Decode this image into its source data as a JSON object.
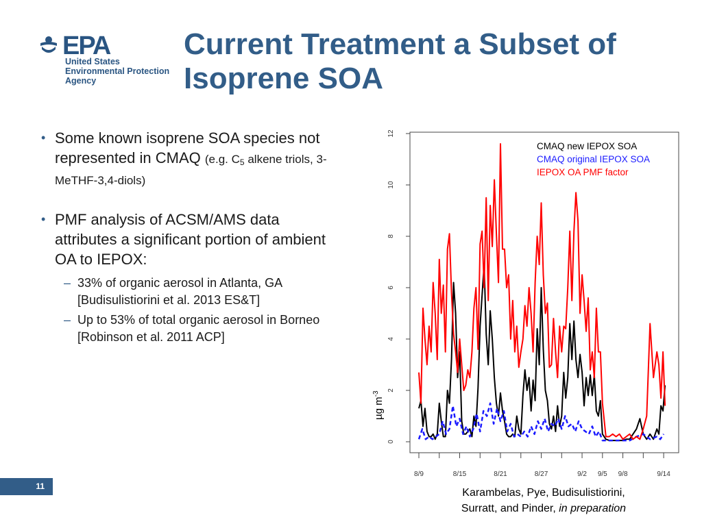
{
  "logo": {
    "wordmark": "EPA",
    "agency_lines": [
      "United States",
      "Environmental Protection",
      "Agency"
    ]
  },
  "title": "Current Treatment a Subset of Isoprene SOA",
  "bullets": [
    {
      "text": "Some known isoprene SOA species not represented in CMAQ",
      "note_prefix": "(e.g. C",
      "note_sub": "5",
      "note_suffix": " alkene triols, 3-MeTHF-3,4-diols)"
    },
    {
      "text": "PMF analysis of ACSM/AMS data attributes a significant portion of ambient OA to IEPOX:",
      "sub_items": [
        "33% of organic aerosol in Atlanta, GA [Budisulistiorini et al. 2013 ES&T]",
        "Up to 53% of total organic aerosol in Borneo [Robinson et al. 2011 ACP]"
      ]
    }
  ],
  "citation": {
    "line1": "Karambelas, Pye, Budisulistiorini,",
    "line2_prefix": "Surratt, and Pinder, ",
    "line2_italic": "in preparation"
  },
  "page_number": "11",
  "colors": {
    "epa_blue": "#325d88",
    "series_black": "#000000",
    "series_blue": "#1a1aff",
    "series_red": "#ff0000"
  },
  "chart_data": {
    "type": "line",
    "ylabel_base": "µg m",
    "ylabel_sup": "-3",
    "ylim": [
      0,
      12
    ],
    "yticks": [
      0,
      2,
      4,
      6,
      8,
      10,
      12
    ],
    "xlim": [
      0,
      37
    ],
    "xtick_labels": [
      {
        "x": 0,
        "label": "8/9"
      },
      {
        "x": 6,
        "label": "8/15"
      },
      {
        "x": 12,
        "label": "8/21"
      },
      {
        "x": 18,
        "label": "8/27"
      },
      {
        "x": 24,
        "label": "9/2"
      },
      {
        "x": 27,
        "label": "9/5"
      },
      {
        "x": 30,
        "label": "9/8"
      },
      {
        "x": 36,
        "label": "9/14"
      }
    ],
    "grid": false,
    "legend": "top-right",
    "series": [
      {
        "name": "CMAQ new IEPOX SOA",
        "color": "#000000",
        "dash": false,
        "x": [
          0,
          0.3,
          0.6,
          0.9,
          1.2,
          1.5,
          1.8,
          2.1,
          2.4,
          2.7,
          3,
          3.3,
          3.6,
          3.9,
          4.2,
          4.5,
          4.8,
          5.1,
          5.4,
          5.7,
          6,
          6.3,
          6.6,
          6.9,
          7.2,
          7.5,
          7.8,
          8.1,
          8.4,
          8.7,
          9,
          9.3,
          9.6,
          9.9,
          10.2,
          10.5,
          10.8,
          11.1,
          11.4,
          11.7,
          12,
          12.3,
          12.6,
          12.9,
          13.2,
          13.5,
          13.8,
          14.1,
          14.4,
          14.7,
          15,
          15.3,
          15.6,
          15.9,
          16.2,
          16.5,
          16.8,
          17.1,
          17.4,
          17.7,
          18,
          18.3,
          18.6,
          18.9,
          19.2,
          19.5,
          19.8,
          20.1,
          20.4,
          20.7,
          21,
          21.3,
          21.6,
          21.9,
          22.2,
          22.5,
          22.8,
          23.1,
          23.4,
          23.7,
          24,
          24.3,
          24.6,
          24.9,
          25.2,
          25.5,
          25.8,
          26.1,
          26.4,
          26.7,
          27,
          27.5,
          28,
          28.5,
          29,
          29.5,
          30,
          30.5,
          31,
          31.5,
          32,
          32.5,
          33,
          33.5,
          34,
          34.5,
          35,
          35.3,
          35.6,
          35.9,
          36.2
        ],
        "y": [
          1.3,
          1.6,
          0.6,
          1.3,
          0.4,
          0.2,
          0.2,
          0.3,
          0.1,
          0.3,
          1.5,
          0.8,
          0.2,
          0.2,
          2.0,
          1.5,
          3.2,
          6.2,
          5.0,
          2.5,
          3.5,
          0.8,
          0.3,
          0.3,
          0.4,
          0.5,
          0.2,
          1.0,
          0.6,
          2.1,
          4.5,
          5.7,
          6.9,
          4.2,
          3.0,
          5.1,
          4.0,
          2.5,
          1.5,
          1.0,
          1.9,
          1.2,
          0.8,
          0.3,
          0.2,
          0.2,
          0.3,
          0.2,
          1.0,
          0.5,
          0.3,
          1.8,
          2.8,
          2.0,
          2.5,
          1.2,
          2.4,
          1.6,
          4.4,
          3.0,
          6.0,
          3.6,
          2.0,
          1.6,
          0.7,
          0.5,
          1.0,
          0.4,
          1.4,
          0.6,
          1.0,
          2.7,
          1.7,
          2.5,
          4.6,
          3.2,
          4.7,
          3.2,
          2.5,
          3.4,
          2.7,
          1.4,
          2.5,
          1.8,
          2.6,
          1.8,
          2.6,
          1.2,
          1.0,
          1.6,
          0.3,
          0.1,
          0.05,
          0.05,
          0.05,
          0.05,
          0.05,
          0.1,
          0.1,
          0.3,
          0.5,
          0.9,
          0.3,
          0.1,
          0.3,
          0.1,
          0.5,
          0.3,
          1.4,
          1.2,
          2.2
        ]
      },
      {
        "name": "CMAQ original IEPOX SOA",
        "color": "#1a1aff",
        "dash": true,
        "x": [
          0,
          0.5,
          1,
          1.5,
          2,
          2.5,
          3,
          3.5,
          4,
          4.5,
          5,
          5.5,
          6,
          6.5,
          7,
          7.5,
          8,
          8.5,
          9,
          9.5,
          10,
          10.5,
          11,
          11.5,
          12,
          12.5,
          13,
          13.5,
          14,
          14.5,
          15,
          15.5,
          16,
          16.5,
          17,
          17.5,
          18,
          18.5,
          19,
          19.5,
          20,
          20.5,
          21,
          21.5,
          22,
          22.5,
          23,
          23.5,
          24,
          24.5,
          25,
          25.5,
          26,
          26.5,
          27,
          28,
          29,
          30,
          31,
          32,
          33,
          34,
          35,
          35.5,
          36
        ],
        "y": [
          0.1,
          0.5,
          0.1,
          0.2,
          0.1,
          0.2,
          0.3,
          0.8,
          0.3,
          0.5,
          1.4,
          0.6,
          0.9,
          0.3,
          0.6,
          0.2,
          0.5,
          1.1,
          0.4,
          1.2,
          1.0,
          1.5,
          0.7,
          1.3,
          0.8,
          1.2,
          0.4,
          0.7,
          0.2,
          0.3,
          0.2,
          0.4,
          0.2,
          0.6,
          0.3,
          0.8,
          0.5,
          0.9,
          0.4,
          0.7,
          0.6,
          0.9,
          0.5,
          1.0,
          0.6,
          0.7,
          0.4,
          0.8,
          0.5,
          0.4,
          0.3,
          0.6,
          0.2,
          0.4,
          0.05,
          0.05,
          0.05,
          0.05,
          0.05,
          0.2,
          0.3,
          0.1,
          0.2,
          0.1,
          0.3
        ]
      },
      {
        "name": "IEPOX OA PMF factor",
        "color": "#ff0000",
        "dash": false,
        "x": [
          0,
          0.3,
          0.6,
          0.9,
          1.2,
          1.5,
          1.8,
          2.1,
          2.4,
          2.7,
          3,
          3.3,
          3.6,
          3.9,
          4.2,
          4.5,
          4.8,
          5.1,
          5.4,
          5.7,
          6,
          6.3,
          6.6,
          6.9,
          7.2,
          7.5,
          7.8,
          8.1,
          8.4,
          8.7,
          9,
          9.3,
          9.6,
          9.9,
          10.2,
          10.5,
          10.8,
          11.1,
          11.4,
          11.7,
          12,
          12.3,
          12.6,
          12.9,
          13.2,
          13.5,
          13.8,
          14.1,
          14.4,
          14.7,
          15,
          15.3,
          15.6,
          15.9,
          16.2,
          16.5,
          16.8,
          17.1,
          17.4,
          17.7,
          18,
          18.3,
          18.6,
          18.9,
          19.2,
          19.5,
          19.8,
          20.1,
          20.4,
          20.7,
          21,
          21.3,
          21.6,
          21.9,
          22.2,
          22.5,
          22.8,
          23.1,
          23.4,
          23.7,
          24,
          24.3,
          24.6,
          24.9,
          25.2,
          25.5,
          25.8,
          26.1,
          26.4,
          26.7,
          27,
          27.5,
          28,
          28.5,
          29,
          29.5,
          30,
          30.5,
          31,
          31.5,
          32,
          32.5,
          33,
          33.5,
          34,
          34.5,
          35,
          35.3,
          35.6,
          35.9,
          36.2
        ],
        "y": [
          2.7,
          1.5,
          5.2,
          4.0,
          3.0,
          4.5,
          3.5,
          6.2,
          5.0,
          3.2,
          7.1,
          5.0,
          6.1,
          3.5,
          7.5,
          8.1,
          5.8,
          4.2,
          3.5,
          2.7,
          4.0,
          3.0,
          2.0,
          2.2,
          2.8,
          2.5,
          3.5,
          5.2,
          6.0,
          3.6,
          7.7,
          8.2,
          6.0,
          9.5,
          5.5,
          9.2,
          7.6,
          10.2,
          8.1,
          6.2,
          11.6,
          7.5,
          7.5,
          6.0,
          6.5,
          4.0,
          5.5,
          3.5,
          4.5,
          2.9,
          3.5,
          4.0,
          5.3,
          4.5,
          6.0,
          5.0,
          3.5,
          6.2,
          8.0,
          6.9,
          9.3,
          6.5,
          5.0,
          5.4,
          2.9,
          3.0,
          4.8,
          3.5,
          2.5,
          4.5,
          3.5,
          4.5,
          4.4,
          6.0,
          8.2,
          5.5,
          8.2,
          9.7,
          8.6,
          5.0,
          6.5,
          5.5,
          4.3,
          5.6,
          2.8,
          3.5,
          2.5,
          5.2,
          3.5,
          3.5,
          1.5,
          0.2,
          0.2,
          0.3,
          0.2,
          0.3,
          0.1,
          0.2,
          0.3,
          0.1,
          0.2,
          0.1,
          0.5,
          1.0,
          4.6,
          2.5,
          3.5,
          3.0,
          1.7,
          3.5,
          1.4
        ]
      }
    ]
  }
}
